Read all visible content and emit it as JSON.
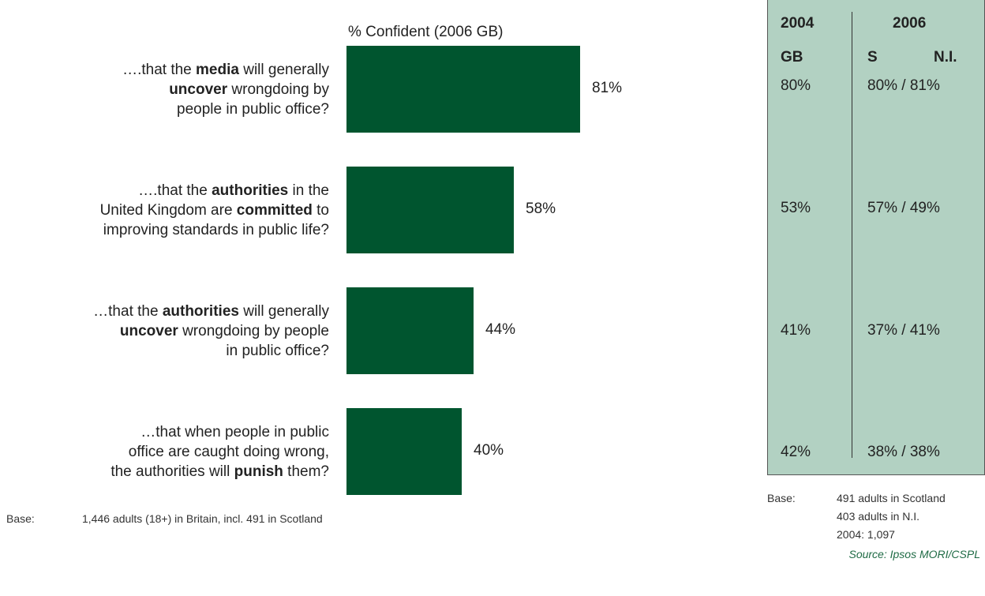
{
  "chart_data": {
    "type": "bar",
    "orientation": "horizontal",
    "title": "% Confident (2006 GB)",
    "xlim": [
      0,
      100
    ],
    "bar_color": "#00552f",
    "categories": [
      [
        {
          "t": "….that the "
        },
        {
          "t": "media",
          "b": true
        },
        {
          "t": " will generally"
        },
        {
          "br": true
        },
        {
          "t": "uncover",
          "b": true
        },
        {
          "t": " wrongdoing by"
        },
        {
          "br": true
        },
        {
          "t": "people in public office?"
        }
      ],
      [
        {
          "t": "….that the "
        },
        {
          "t": "authorities",
          "b": true
        },
        {
          "t": " in the"
        },
        {
          "br": true
        },
        {
          "t": "United Kingdom are "
        },
        {
          "t": "committed",
          "b": true
        },
        {
          "t": " to"
        },
        {
          "br": true
        },
        {
          "t": "improving standards in public life?"
        }
      ],
      [
        {
          "t": "…that the "
        },
        {
          "t": "authorities",
          "b": true
        },
        {
          "t": " will generally"
        },
        {
          "br": true
        },
        {
          "t": "uncover",
          "b": true
        },
        {
          "t": " wrongdoing by people"
        },
        {
          "br": true
        },
        {
          "t": "in public office?"
        }
      ],
      [
        {
          "t": "…that when people in public"
        },
        {
          "br": true
        },
        {
          "t": "office are caught doing wrong,"
        },
        {
          "br": true
        },
        {
          "t": "the authorities will "
        },
        {
          "t": "punish",
          "b": true
        },
        {
          "t": " them?"
        }
      ]
    ],
    "values": [
      81,
      58,
      44,
      40
    ],
    "value_labels": [
      "81%",
      "58%",
      "44%",
      "40%"
    ]
  },
  "base_left": {
    "label": "Base:",
    "text": "1,446 adults (18+) in Britain, incl. 491 in Scotland"
  },
  "comparison_table": {
    "background": "#b2d1c2",
    "headers": {
      "year_2004": "2004",
      "year_2006": "2006",
      "gb": "GB",
      "s": "S",
      "ni": "N.I."
    },
    "rows": [
      {
        "gb_2004": "80%",
        "s_ni_2006": "80% / 81%"
      },
      {
        "gb_2004": "53%",
        "s_ni_2006": "57% / 49%"
      },
      {
        "gb_2004": "41%",
        "s_ni_2006": "37% / 41%"
      },
      {
        "gb_2004": "42%",
        "s_ni_2006": "38% / 38%"
      }
    ]
  },
  "base_right": {
    "label": "Base:",
    "lines": [
      "491 adults in Scotland",
      "403 adults in N.I.",
      "2004: 1,097"
    ]
  },
  "source": "Source: Ipsos MORI/CSPL"
}
